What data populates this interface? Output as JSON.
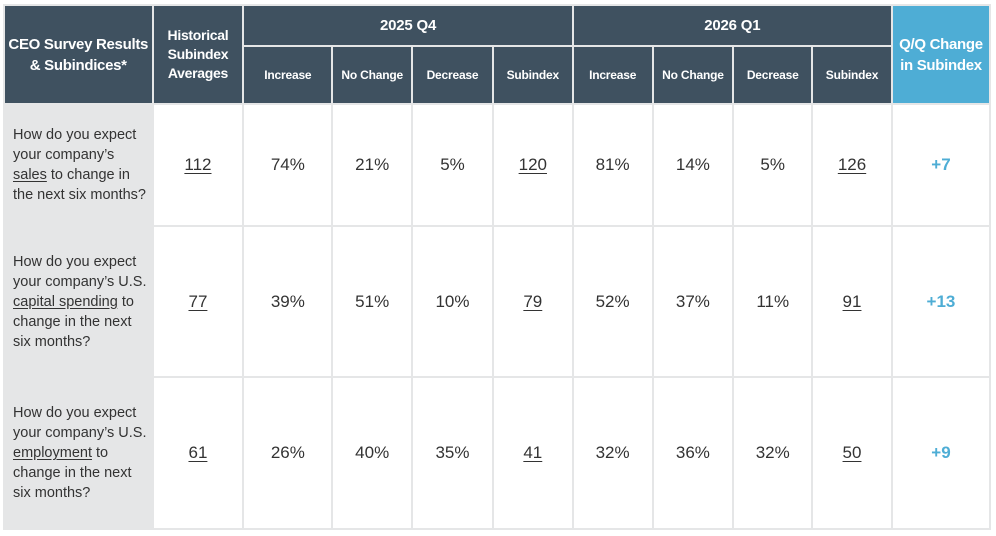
{
  "chart_data": {
    "type": "table",
    "header": {
      "col_results": "CEO Survey Results & Subindices*",
      "col_hist": "Historical Subindex Averages",
      "period_1": "2025 Q4",
      "period_2": "2026 Q1",
      "col_change": "Q/Q Change in Subindex",
      "sub_columns": [
        "Increase",
        "No Change",
        "Decrease",
        "Subindex"
      ]
    },
    "rows": [
      {
        "q_pre": "How do you expect your company’s ",
        "q_key": "sales",
        "q_post": " to change in the next six months?",
        "hist": "112",
        "p1": [
          "74%",
          "21%",
          "5%",
          "120"
        ],
        "p2": [
          "81%",
          "14%",
          "5%",
          "126"
        ],
        "change": "+7"
      },
      {
        "q_pre": "How do you expect your company’s U.S. ",
        "q_key": "capital spending",
        "q_post": " to change in the next six months?",
        "hist": "77",
        "p1": [
          "39%",
          "51%",
          "10%",
          "79"
        ],
        "p2": [
          "52%",
          "37%",
          "11%",
          "91"
        ],
        "change": "+13"
      },
      {
        "q_pre": "How do you expect your company’s U.S. ",
        "q_key": "employment",
        "q_post": " to change in the next six months?",
        "hist": "61",
        "p1": [
          "26%",
          "40%",
          "35%",
          "41"
        ],
        "p2": [
          "32%",
          "36%",
          "32%",
          "50"
        ],
        "change": "+9"
      }
    ]
  },
  "colors": {
    "header_dark": "#3f5160",
    "header_accent": "#4eadd5",
    "question_bg": "#e5e6e7",
    "change_text": "#4eadd5"
  }
}
